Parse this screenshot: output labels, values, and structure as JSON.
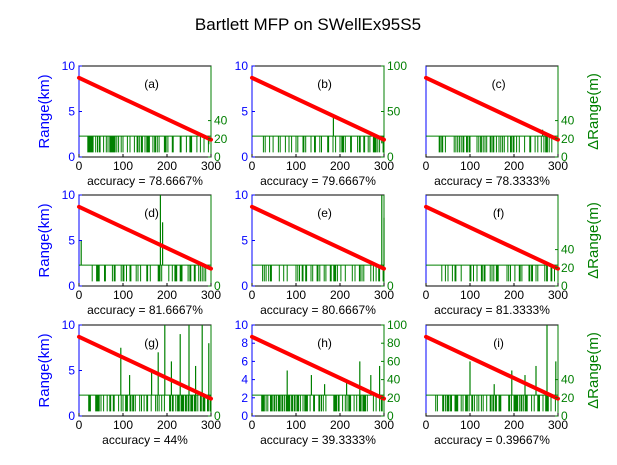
{
  "title": "Bartlett MFP on SWellEx95S5",
  "colors": {
    "range_axis": "#0000ff",
    "delta_axis": "#007f00",
    "estimate_line": "#ff0000",
    "error_trace": "#008000",
    "text": "#000000"
  },
  "chart_data": [
    {
      "type": "line",
      "panel": "(a)",
      "accuracy_label": "accuracy = 78.6667%",
      "ylabel": "Range(km)",
      "ylabel_right": "",
      "x": [
        0,
        300
      ],
      "xlim": [
        0,
        300
      ],
      "xticks": [
        "0",
        "100",
        "200",
        "300"
      ],
      "ylim": [
        0,
        10
      ],
      "yticks": [
        "0",
        "5",
        "10"
      ],
      "y2lim": [
        0,
        100
      ],
      "y2ticks": [
        "0",
        "20",
        "40"
      ],
      "range_start": 8.7,
      "range_end": 1.9,
      "error_base": 23,
      "spike_top": 5,
      "spike_density": 0.35,
      "spikes": [
        [
          295,
          14
        ]
      ]
    },
    {
      "type": "line",
      "panel": "(b)",
      "accuracy_label": "accuracy = 79.6667%",
      "ylabel": "",
      "ylabel_right": "",
      "x": [
        0,
        300
      ],
      "xlim": [
        0,
        300
      ],
      "xticks": [
        "0",
        "100",
        "200",
        "300"
      ],
      "ylim": [
        0,
        10
      ],
      "yticks": [
        "0",
        "5",
        "10"
      ],
      "y2lim": [
        0,
        100
      ],
      "y2ticks": [
        "0",
        "50",
        "100"
      ],
      "range_start": 8.7,
      "range_end": 1.9,
      "error_base": 23,
      "spike_top": 5,
      "spike_density": 0.3,
      "spikes": [
        [
          185,
          45
        ],
        [
          295,
          15
        ]
      ]
    },
    {
      "type": "line",
      "panel": "(c)",
      "accuracy_label": "accuracy = 78.3333%",
      "ylabel": "",
      "ylabel_right": "ΔRange(m)",
      "x": [
        0,
        300
      ],
      "xlim": [
        0,
        300
      ],
      "xticks": [
        "0",
        "100",
        "200",
        "300"
      ],
      "ylim": [
        0,
        10
      ],
      "yticks": [],
      "y2lim": [
        0,
        100
      ],
      "y2ticks": [
        "0",
        "20",
        "40"
      ],
      "range_start": 8.7,
      "range_end": 1.9,
      "error_base": 23,
      "spike_top": 5,
      "spike_density": 0.35,
      "spikes": [
        [
          265,
          30
        ],
        [
          280,
          25
        ]
      ]
    },
    {
      "type": "line",
      "panel": "(d)",
      "accuracy_label": "accuracy = 81.6667%",
      "ylabel": "Range(km)",
      "ylabel_right": "",
      "x": [
        0,
        300
      ],
      "xlim": [
        0,
        300
      ],
      "xticks": [
        "0",
        "100",
        "200",
        "300"
      ],
      "ylim": [
        0,
        10
      ],
      "yticks": [
        "0",
        "5",
        "10"
      ],
      "y2lim": [
        0,
        100
      ],
      "y2ticks": [
        "0"
      ],
      "range_start": 8.7,
      "range_end": 1.9,
      "error_base": 23,
      "spike_top": 5,
      "spike_density": 0.3,
      "spikes": [
        [
          5,
          50
        ],
        [
          185,
          100
        ],
        [
          190,
          70
        ]
      ]
    },
    {
      "type": "line",
      "panel": "(e)",
      "accuracy_label": "accuracy = 80.6667%",
      "ylabel": "",
      "ylabel_right": "",
      "x": [
        0,
        300
      ],
      "xlim": [
        0,
        300
      ],
      "xticks": [
        "0",
        "100",
        "200",
        "300"
      ],
      "ylim": [
        0,
        10
      ],
      "yticks": [
        "0",
        "5",
        "10"
      ],
      "y2lim": [
        0,
        100
      ],
      "y2ticks": [
        "0"
      ],
      "range_start": 8.7,
      "range_end": 1.9,
      "error_base": 23,
      "spike_top": 5,
      "spike_density": 0.3,
      "spikes": [
        [
          295,
          100
        ],
        [
          300,
          75
        ]
      ]
    },
    {
      "type": "line",
      "panel": "(f)",
      "accuracy_label": "accuracy = 81.3333%",
      "ylabel": "",
      "ylabel_right": "ΔRange(m)",
      "x": [
        0,
        300
      ],
      "xlim": [
        0,
        300
      ],
      "xticks": [
        "0",
        "100",
        "200",
        "300"
      ],
      "ylim": [
        0,
        10
      ],
      "yticks": [],
      "y2lim": [
        0,
        100
      ],
      "y2ticks": [
        "0",
        "20",
        "40"
      ],
      "range_start": 8.7,
      "range_end": 1.9,
      "error_base": 23,
      "spike_top": 5,
      "spike_density": 0.3,
      "spikes": [
        [
          295,
          20
        ]
      ]
    },
    {
      "type": "line",
      "panel": "(g)",
      "accuracy_label": "accuracy = 44%",
      "ylabel": "Range(km)",
      "ylabel_right": "",
      "x": [
        0,
        300
      ],
      "xlim": [
        0,
        300
      ],
      "xticks": [
        "0",
        "100",
        "200",
        "300"
      ],
      "ylim": [
        0,
        10
      ],
      "yticks": [
        "0",
        "5",
        "10"
      ],
      "y2lim": [
        0,
        100
      ],
      "y2ticks": [
        "0"
      ],
      "range_start": 8.7,
      "range_end": 1.9,
      "error_base": 23,
      "spike_top": 5,
      "spike_density": 0.45,
      "spikes": [
        [
          95,
          75
        ],
        [
          115,
          45
        ],
        [
          165,
          50
        ],
        [
          180,
          70
        ],
        [
          195,
          100
        ],
        [
          210,
          60
        ],
        [
          230,
          90
        ],
        [
          250,
          100
        ],
        [
          265,
          55
        ],
        [
          280,
          100
        ],
        [
          295,
          80
        ]
      ]
    },
    {
      "type": "line",
      "panel": "(h)",
      "accuracy_label": "accuracy = 39.3333%",
      "ylabel": "",
      "ylabel_right": "",
      "x": [
        0,
        300
      ],
      "xlim": [
        0,
        300
      ],
      "xticks": [
        "0",
        "100",
        "200",
        "300"
      ],
      "ylim": [
        0,
        10
      ],
      "yticks": [
        "0",
        "2",
        "4",
        "6",
        "8",
        "10"
      ],
      "y2lim": [
        0,
        100
      ],
      "y2ticks": [
        "0",
        "20",
        "40",
        "60",
        "80",
        "100"
      ],
      "range_start": 8.7,
      "range_end": 1.9,
      "error_base": 23,
      "spike_top": 5,
      "spike_density": 0.45,
      "spikes": [
        [
          80,
          50
        ],
        [
          135,
          45
        ],
        [
          165,
          35
        ],
        [
          215,
          40
        ],
        [
          245,
          60
        ],
        [
          270,
          45
        ],
        [
          290,
          55
        ]
      ]
    },
    {
      "type": "line",
      "panel": "(i)",
      "accuracy_label": "accuracy = 0.39667%",
      "ylabel": "",
      "ylabel_right": "ΔRange(m)",
      "x": [
        0,
        300
      ],
      "xlim": [
        0,
        300
      ],
      "xticks": [
        "0",
        "100",
        "200",
        "300"
      ],
      "ylim": [
        0,
        10
      ],
      "yticks": [],
      "y2lim": [
        0,
        100
      ],
      "y2ticks": [
        "0",
        "20",
        "40"
      ],
      "range_start": 8.7,
      "range_end": 1.9,
      "error_base": 23,
      "spike_top": 5,
      "spike_density": 0.45,
      "spikes": [
        [
          100,
          60
        ],
        [
          155,
          35
        ],
        [
          195,
          50
        ],
        [
          225,
          45
        ],
        [
          250,
          55
        ],
        [
          275,
          100
        ],
        [
          295,
          60
        ]
      ]
    }
  ]
}
